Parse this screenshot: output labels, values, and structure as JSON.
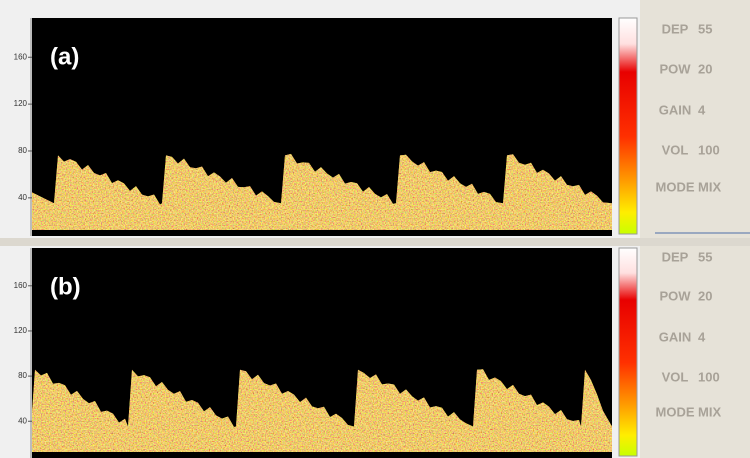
{
  "panels": [
    {
      "label": "(a)",
      "yticks": [
        "160",
        "120",
        "80",
        "40"
      ],
      "settings": [
        {
          "name": "DEP",
          "value": "55"
        },
        {
          "name": "POW",
          "value": "20"
        },
        {
          "name": "GAIN",
          "value": "4"
        },
        {
          "name": "VOL",
          "value": "100"
        },
        {
          "name": "MODE",
          "value": "MIX"
        }
      ]
    },
    {
      "label": "(b)",
      "yticks": [
        "160",
        "120",
        "80",
        "40"
      ],
      "settings": [
        {
          "name": "DEP",
          "value": "55"
        },
        {
          "name": "POW",
          "value": "20"
        },
        {
          "name": "GAIN",
          "value": "4"
        },
        {
          "name": "VOL",
          "value": "100"
        },
        {
          "name": "MODE",
          "value": "MIX"
        }
      ]
    }
  ]
}
